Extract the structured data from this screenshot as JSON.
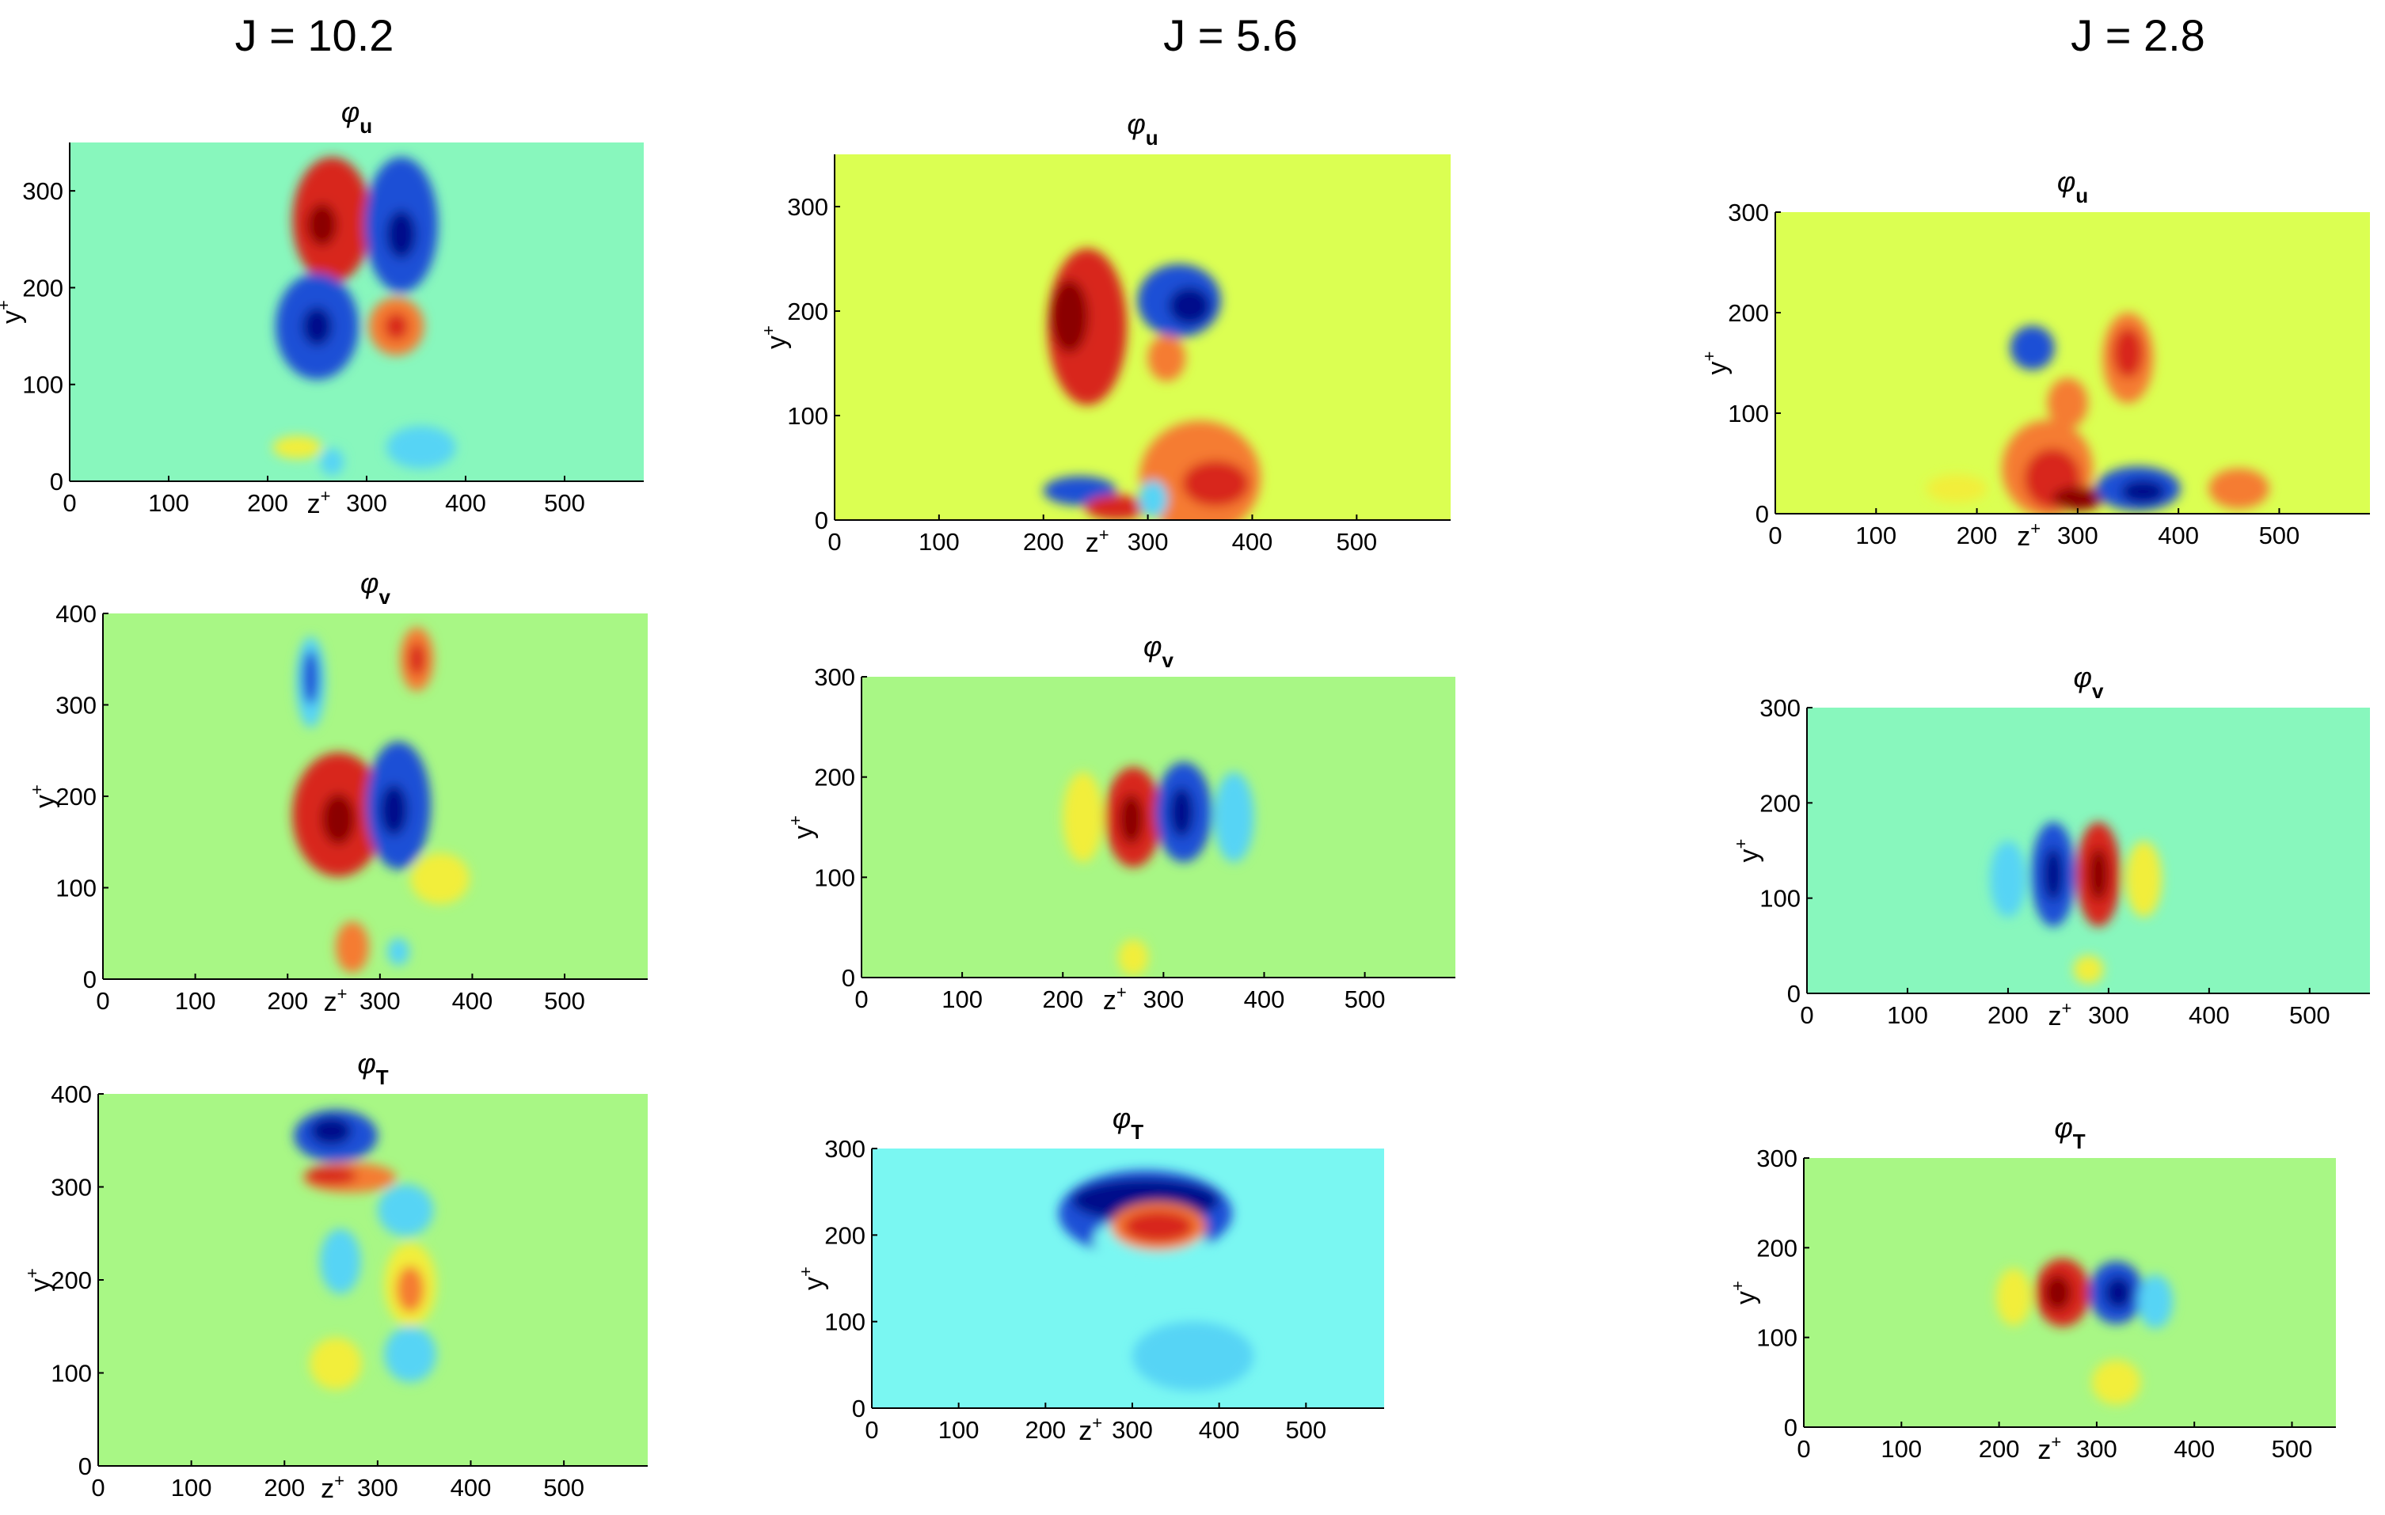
{
  "columns": [
    {
      "title": "J = 10.2"
    },
    {
      "title": "J = 5.6"
    },
    {
      "title": "J = 2.8"
    }
  ],
  "colors": {
    "background_a": "#88f7bd",
    "background_b": "#dbff52",
    "background_c": "#a8f785",
    "background_d": "#7af7f2",
    "red": "#d8271a",
    "dark_red": "#8b0000",
    "blue": "#1a4fd6",
    "dark_blue": "#000a8b",
    "orange": "#f57c32",
    "yellow": "#f2ee3a",
    "cyan": "#57d4f5"
  },
  "chart_data": [
    {
      "type": "heatmap",
      "column": "J = 10.2",
      "title": "φ",
      "subscript": "u",
      "xlabel": "z",
      "xlabel_sup": "+",
      "ylabel": "y",
      "ylabel_sup": "+",
      "xlim": [
        0,
        580
      ],
      "ylim": [
        0,
        350
      ],
      "xticks": [
        0,
        100,
        200,
        300,
        400,
        500
      ],
      "yticks": [
        0,
        100,
        200,
        300
      ],
      "background": "#88f7bd",
      "blobs": [
        {
          "x": 265,
          "y": 270,
          "rx": 40,
          "ry": 65,
          "color": "#d8271a"
        },
        {
          "x": 255,
          "y": 265,
          "rx": 15,
          "ry": 22,
          "color": "#8b0000"
        },
        {
          "x": 335,
          "y": 265,
          "rx": 37,
          "ry": 70,
          "color": "#1a4fd6"
        },
        {
          "x": 335,
          "y": 255,
          "rx": 15,
          "ry": 25,
          "color": "#000a8b"
        },
        {
          "x": 250,
          "y": 160,
          "rx": 42,
          "ry": 55,
          "color": "#1a4fd6"
        },
        {
          "x": 250,
          "y": 160,
          "rx": 15,
          "ry": 20,
          "color": "#000a8b"
        },
        {
          "x": 330,
          "y": 160,
          "rx": 28,
          "ry": 30,
          "color": "#f57c32"
        },
        {
          "x": 330,
          "y": 160,
          "rx": 12,
          "ry": 14,
          "color": "#d8271a"
        },
        {
          "x": 230,
          "y": 35,
          "rx": 25,
          "ry": 12,
          "color": "#f2ee3a"
        },
        {
          "x": 265,
          "y": 20,
          "rx": 12,
          "ry": 14,
          "color": "#57d4f5"
        },
        {
          "x": 355,
          "y": 35,
          "rx": 35,
          "ry": 22,
          "color": "#57d4f5"
        }
      ]
    },
    {
      "type": "heatmap",
      "column": "J = 10.2",
      "title": "φ",
      "subscript": "v",
      "xlabel": "z",
      "xlabel_sup": "+",
      "ylabel": "y",
      "ylabel_sup": "+",
      "xlim": [
        0,
        590
      ],
      "ylim": [
        0,
        400
      ],
      "xticks": [
        0,
        100,
        200,
        300,
        400,
        500
      ],
      "yticks": [
        0,
        100,
        200,
        300,
        400
      ],
      "background": "#a8f785",
      "blobs": [
        {
          "x": 225,
          "y": 325,
          "rx": 16,
          "ry": 50,
          "color": "#57d4f5"
        },
        {
          "x": 225,
          "y": 330,
          "rx": 9,
          "ry": 30,
          "color": "#1a4fd6"
        },
        {
          "x": 340,
          "y": 350,
          "rx": 18,
          "ry": 35,
          "color": "#f57c32"
        },
        {
          "x": 340,
          "y": 350,
          "rx": 9,
          "ry": 18,
          "color": "#d8271a"
        },
        {
          "x": 255,
          "y": 180,
          "rx": 50,
          "ry": 68,
          "color": "#d8271a"
        },
        {
          "x": 255,
          "y": 175,
          "rx": 18,
          "ry": 28,
          "color": "#8b0000"
        },
        {
          "x": 320,
          "y": 190,
          "rx": 35,
          "ry": 70,
          "color": "#1a4fd6"
        },
        {
          "x": 315,
          "y": 185,
          "rx": 15,
          "ry": 28,
          "color": "#000a8b"
        },
        {
          "x": 365,
          "y": 110,
          "rx": 32,
          "ry": 28,
          "color": "#f2ee3a"
        },
        {
          "x": 270,
          "y": 35,
          "rx": 18,
          "ry": 28,
          "color": "#f57c32"
        },
        {
          "x": 320,
          "y": 30,
          "rx": 12,
          "ry": 15,
          "color": "#57d4f5"
        }
      ]
    },
    {
      "type": "heatmap",
      "column": "J = 10.2",
      "title": "φ",
      "subscript": "T",
      "xlabel": "z",
      "xlabel_sup": "+",
      "ylabel": "y",
      "ylabel_sup": "+",
      "xlim": [
        0,
        590
      ],
      "ylim": [
        0,
        400
      ],
      "xticks": [
        0,
        100,
        200,
        300,
        400,
        500
      ],
      "yticks": [
        0,
        100,
        200,
        300,
        400
      ],
      "background": "#a8f785",
      "blobs": [
        {
          "x": 255,
          "y": 355,
          "rx": 45,
          "ry": 28,
          "color": "#1a4fd6"
        },
        {
          "x": 250,
          "y": 360,
          "rx": 22,
          "ry": 15,
          "color": "#000a8b"
        },
        {
          "x": 270,
          "y": 310,
          "rx": 50,
          "ry": 16,
          "color": "#f57c32"
        },
        {
          "x": 250,
          "y": 312,
          "rx": 28,
          "ry": 10,
          "color": "#d8271a"
        },
        {
          "x": 330,
          "y": 275,
          "rx": 30,
          "ry": 28,
          "color": "#57d4f5"
        },
        {
          "x": 335,
          "y": 195,
          "rx": 28,
          "ry": 45,
          "color": "#f2ee3a"
        },
        {
          "x": 335,
          "y": 190,
          "rx": 15,
          "ry": 25,
          "color": "#f57c32"
        },
        {
          "x": 260,
          "y": 220,
          "rx": 22,
          "ry": 35,
          "color": "#57d4f5"
        },
        {
          "x": 255,
          "y": 110,
          "rx": 28,
          "ry": 28,
          "color": "#f2ee3a"
        },
        {
          "x": 335,
          "y": 120,
          "rx": 28,
          "ry": 30,
          "color": "#57d4f5"
        }
      ]
    },
    {
      "type": "heatmap",
      "column": "J = 5.6",
      "title": "φ",
      "subscript": "u",
      "xlabel": "z",
      "xlabel_sup": "+",
      "ylabel": "y",
      "ylabel_sup": "+",
      "xlim": [
        0,
        590
      ],
      "ylim": [
        0,
        350
      ],
      "xticks": [
        0,
        100,
        200,
        300,
        400,
        500
      ],
      "yticks": [
        0,
        100,
        200,
        300
      ],
      "background": "#dbff52",
      "blobs": [
        {
          "x": 242,
          "y": 185,
          "rx": 38,
          "ry": 75,
          "color": "#d8271a"
        },
        {
          "x": 225,
          "y": 195,
          "rx": 18,
          "ry": 35,
          "color": "#8b0000"
        },
        {
          "x": 330,
          "y": 210,
          "rx": 40,
          "ry": 35,
          "color": "#1a4fd6"
        },
        {
          "x": 340,
          "y": 205,
          "rx": 20,
          "ry": 18,
          "color": "#000a8b"
        },
        {
          "x": 318,
          "y": 155,
          "rx": 18,
          "ry": 22,
          "color": "#f57c32"
        },
        {
          "x": 350,
          "y": 40,
          "rx": 58,
          "ry": 55,
          "color": "#f57c32"
        },
        {
          "x": 365,
          "y": 35,
          "rx": 32,
          "ry": 22,
          "color": "#d8271a"
        },
        {
          "x": 235,
          "y": 28,
          "rx": 35,
          "ry": 14,
          "color": "#1a4fd6"
        },
        {
          "x": 270,
          "y": 12,
          "rx": 30,
          "ry": 12,
          "color": "#d8271a"
        },
        {
          "x": 305,
          "y": 20,
          "rx": 14,
          "ry": 18,
          "color": "#57d4f5"
        }
      ]
    },
    {
      "type": "heatmap",
      "column": "J = 5.6",
      "title": "φ",
      "subscript": "v",
      "xlabel": "z",
      "xlabel_sup": "+",
      "ylabel": "y",
      "ylabel_sup": "+",
      "xlim": [
        0,
        590
      ],
      "ylim": [
        0,
        300
      ],
      "xticks": [
        0,
        100,
        200,
        300,
        400,
        500
      ],
      "yticks": [
        0,
        100,
        200,
        300
      ],
      "background": "#a8f785",
      "blobs": [
        {
          "x": 270,
          "y": 160,
          "rx": 28,
          "ry": 50,
          "color": "#d8271a"
        },
        {
          "x": 268,
          "y": 158,
          "rx": 12,
          "ry": 25,
          "color": "#8b0000"
        },
        {
          "x": 320,
          "y": 165,
          "rx": 28,
          "ry": 50,
          "color": "#1a4fd6"
        },
        {
          "x": 318,
          "y": 165,
          "rx": 12,
          "ry": 25,
          "color": "#000a8b"
        },
        {
          "x": 220,
          "y": 160,
          "rx": 20,
          "ry": 45,
          "color": "#f2ee3a"
        },
        {
          "x": 370,
          "y": 160,
          "rx": 20,
          "ry": 45,
          "color": "#57d4f5"
        },
        {
          "x": 270,
          "y": 20,
          "rx": 15,
          "ry": 18,
          "color": "#f2ee3a"
        }
      ]
    },
    {
      "type": "heatmap",
      "column": "J = 5.6",
      "title": "φ",
      "subscript": "T",
      "xlabel": "z",
      "xlabel_sup": "+",
      "ylabel": "y",
      "ylabel_sup": "+",
      "xlim": [
        0,
        590
      ],
      "ylim": [
        0,
        300
      ],
      "xticks": [
        0,
        100,
        200,
        300,
        400,
        500
      ],
      "yticks": [
        0,
        100,
        200,
        300
      ],
      "background": "#7af7f2",
      "blobs": [
        {
          "x": 315,
          "y": 225,
          "rx": 100,
          "ry": 50,
          "color": "#1a4fd6"
        },
        {
          "x": 315,
          "y": 240,
          "rx": 85,
          "ry": 25,
          "color": "#000a8b"
        },
        {
          "x": 320,
          "y": 195,
          "rx": 65,
          "ry": 28,
          "color": "#7af7f2"
        },
        {
          "x": 330,
          "y": 210,
          "rx": 55,
          "ry": 28,
          "color": "#f57c32"
        },
        {
          "x": 330,
          "y": 210,
          "rx": 40,
          "ry": 18,
          "color": "#d8271a"
        },
        {
          "x": 370,
          "y": 60,
          "rx": 70,
          "ry": 40,
          "color": "#57d4f5"
        }
      ]
    },
    {
      "type": "heatmap",
      "column": "J = 2.8",
      "title": "φ",
      "subscript": "u",
      "xlabel": "z",
      "xlabel_sup": "+",
      "ylabel": "y",
      "ylabel_sup": "+",
      "xlim": [
        0,
        590
      ],
      "ylim": [
        0,
        300
      ],
      "xticks": [
        0,
        100,
        200,
        300,
        400,
        500
      ],
      "yticks": [
        0,
        100,
        200,
        300
      ],
      "background": "#dbff52",
      "blobs": [
        {
          "x": 350,
          "y": 155,
          "rx": 25,
          "ry": 45,
          "color": "#f57c32"
        },
        {
          "x": 350,
          "y": 160,
          "rx": 15,
          "ry": 25,
          "color": "#d8271a"
        },
        {
          "x": 255,
          "y": 165,
          "rx": 22,
          "ry": 22,
          "color": "#1a4fd6"
        },
        {
          "x": 290,
          "y": 110,
          "rx": 20,
          "ry": 25,
          "color": "#f57c32"
        },
        {
          "x": 270,
          "y": 45,
          "rx": 45,
          "ry": 48,
          "color": "#f57c32"
        },
        {
          "x": 275,
          "y": 35,
          "rx": 28,
          "ry": 30,
          "color": "#d8271a"
        },
        {
          "x": 300,
          "y": 15,
          "rx": 25,
          "ry": 12,
          "color": "#8b0000"
        },
        {
          "x": 360,
          "y": 25,
          "rx": 42,
          "ry": 22,
          "color": "#1a4fd6"
        },
        {
          "x": 365,
          "y": 22,
          "rx": 22,
          "ry": 12,
          "color": "#000a8b"
        },
        {
          "x": 460,
          "y": 25,
          "rx": 30,
          "ry": 20,
          "color": "#f57c32"
        },
        {
          "x": 180,
          "y": 25,
          "rx": 30,
          "ry": 14,
          "color": "#f2ee3a"
        }
      ]
    },
    {
      "type": "heatmap",
      "column": "J = 2.8",
      "title": "φ",
      "subscript": "v",
      "xlabel": "z",
      "xlabel_sup": "+",
      "ylabel": "y",
      "ylabel_sup": "+",
      "xlim": [
        0,
        560
      ],
      "ylim": [
        0,
        300
      ],
      "xticks": [
        0,
        100,
        200,
        300,
        400,
        500
      ],
      "yticks": [
        0,
        100,
        200,
        300
      ],
      "background": "#88f7bd",
      "blobs": [
        {
          "x": 245,
          "y": 125,
          "rx": 22,
          "ry": 55,
          "color": "#1a4fd6"
        },
        {
          "x": 245,
          "y": 125,
          "rx": 10,
          "ry": 28,
          "color": "#000a8b"
        },
        {
          "x": 290,
          "y": 125,
          "rx": 22,
          "ry": 55,
          "color": "#d8271a"
        },
        {
          "x": 290,
          "y": 125,
          "rx": 10,
          "ry": 28,
          "color": "#8b0000"
        },
        {
          "x": 200,
          "y": 120,
          "rx": 18,
          "ry": 40,
          "color": "#57d4f5"
        },
        {
          "x": 335,
          "y": 120,
          "rx": 18,
          "ry": 40,
          "color": "#f2ee3a"
        },
        {
          "x": 280,
          "y": 25,
          "rx": 15,
          "ry": 15,
          "color": "#f2ee3a"
        }
      ]
    },
    {
      "type": "heatmap",
      "column": "J = 2.8",
      "title": "φ",
      "subscript": "T",
      "xlabel": "z",
      "xlabel_sup": "+",
      "ylabel": "y",
      "ylabel_sup": "+",
      "xlim": [
        0,
        545
      ],
      "ylim": [
        0,
        300
      ],
      "xticks": [
        0,
        100,
        200,
        300,
        400,
        500
      ],
      "yticks": [
        0,
        100,
        200,
        300
      ],
      "background": "#a8f785",
      "blobs": [
        {
          "x": 265,
          "y": 150,
          "rx": 28,
          "ry": 38,
          "color": "#d8271a"
        },
        {
          "x": 260,
          "y": 150,
          "rx": 14,
          "ry": 20,
          "color": "#8b0000"
        },
        {
          "x": 320,
          "y": 150,
          "rx": 28,
          "ry": 35,
          "color": "#1a4fd6"
        },
        {
          "x": 322,
          "y": 150,
          "rx": 14,
          "ry": 18,
          "color": "#000a8b"
        },
        {
          "x": 215,
          "y": 145,
          "rx": 18,
          "ry": 32,
          "color": "#f2ee3a"
        },
        {
          "x": 360,
          "y": 140,
          "rx": 18,
          "ry": 30,
          "color": "#57d4f5"
        },
        {
          "x": 320,
          "y": 50,
          "rx": 25,
          "ry": 25,
          "color": "#f2ee3a"
        }
      ]
    }
  ]
}
